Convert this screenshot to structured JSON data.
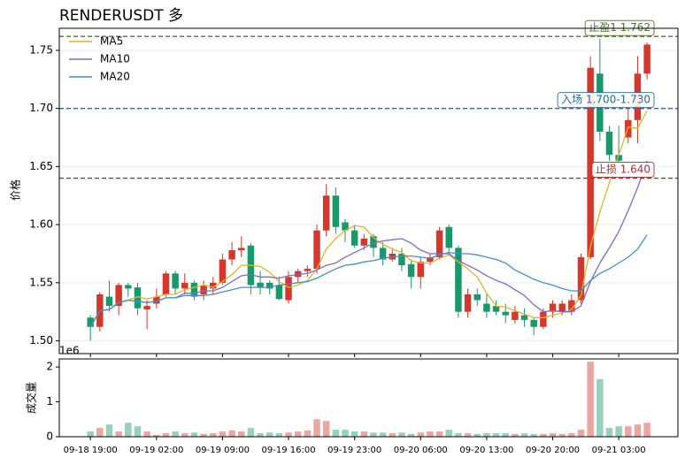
{
  "chart_data": {
    "type": "candlestick",
    "title": "RENDERUSDT  多",
    "ylabel": "价格",
    "volume_label": "成交量",
    "volume_offset": "1e6",
    "categories": [
      "09-18 19:00",
      null,
      null,
      null,
      null,
      null,
      null,
      "09-19 02:00",
      null,
      null,
      null,
      null,
      null,
      null,
      "09-19 09:00",
      null,
      null,
      null,
      null,
      null,
      null,
      "09-19 16:00",
      null,
      null,
      null,
      null,
      null,
      null,
      "09-19 23:00",
      null,
      null,
      null,
      null,
      null,
      null,
      "09-20 06:00",
      null,
      null,
      null,
      null,
      null,
      null,
      "09-20 13:00",
      null,
      null,
      null,
      null,
      null,
      null,
      "09-20 20:00",
      null,
      null,
      null,
      null,
      null,
      null,
      "09-21 03:00",
      null,
      null,
      null
    ],
    "open": [
      1.52,
      1.512,
      1.538,
      1.53,
      1.548,
      1.546,
      1.527,
      1.532,
      1.54,
      1.558,
      1.545,
      1.55,
      1.54,
      1.545,
      1.55,
      1.57,
      1.578,
      1.582,
      1.55,
      1.55,
      1.548,
      1.535,
      1.555,
      1.56,
      1.562,
      1.595,
      1.625,
      1.602,
      1.595,
      1.582,
      1.59,
      1.58,
      1.57,
      1.575,
      1.566,
      1.555,
      1.568,
      1.572,
      1.598,
      1.58,
      1.525,
      1.54,
      1.532,
      1.53,
      1.525,
      1.518,
      1.522,
      1.518,
      1.512,
      1.525,
      1.525,
      1.525,
      1.535,
      1.572,
      1.73,
      1.68,
      1.66,
      1.675,
      1.69,
      1.73
    ],
    "high": [
      1.522,
      1.542,
      1.552,
      1.55,
      1.55,
      1.55,
      1.535,
      1.545,
      1.56,
      1.56,
      1.558,
      1.552,
      1.552,
      1.555,
      1.575,
      1.585,
      1.59,
      1.584,
      1.56,
      1.552,
      1.555,
      1.56,
      1.562,
      1.565,
      1.6,
      1.635,
      1.632,
      1.605,
      1.6,
      1.592,
      1.592,
      1.585,
      1.58,
      1.58,
      1.57,
      1.572,
      1.575,
      1.598,
      1.6,
      1.582,
      1.545,
      1.545,
      1.54,
      1.535,
      1.532,
      1.53,
      1.528,
      1.52,
      1.528,
      1.535,
      1.535,
      1.54,
      1.575,
      1.745,
      1.76,
      1.685,
      1.685,
      1.7,
      1.745,
      1.757
    ],
    "low": [
      1.5,
      1.508,
      1.525,
      1.522,
      1.538,
      1.522,
      1.51,
      1.528,
      1.538,
      1.54,
      1.54,
      1.535,
      1.535,
      1.54,
      1.548,
      1.565,
      1.572,
      1.54,
      1.54,
      1.54,
      1.535,
      1.532,
      1.55,
      1.555,
      1.558,
      1.59,
      1.592,
      1.585,
      1.58,
      1.578,
      1.572,
      1.565,
      1.568,
      1.56,
      1.545,
      1.545,
      1.565,
      1.57,
      1.575,
      1.52,
      1.52,
      1.53,
      1.52,
      1.522,
      1.515,
      1.515,
      1.512,
      1.505,
      1.51,
      1.52,
      1.522,
      1.522,
      1.532,
      1.57,
      1.672,
      1.655,
      1.65,
      1.67,
      1.67,
      1.725
    ],
    "close": [
      1.512,
      1.54,
      1.53,
      1.548,
      1.545,
      1.528,
      1.53,
      1.538,
      1.558,
      1.545,
      1.55,
      1.538,
      1.548,
      1.55,
      1.57,
      1.578,
      1.58,
      1.548,
      1.546,
      1.545,
      1.536,
      1.555,
      1.56,
      1.562,
      1.595,
      1.625,
      1.598,
      1.595,
      1.582,
      1.588,
      1.58,
      1.57,
      1.575,
      1.565,
      1.555,
      1.568,
      1.572,
      1.595,
      1.58,
      1.525,
      1.54,
      1.535,
      1.525,
      1.525,
      1.522,
      1.525,
      1.518,
      1.512,
      1.525,
      1.532,
      1.532,
      1.535,
      1.572,
      1.735,
      1.68,
      1.66,
      1.655,
      1.69,
      1.73,
      1.755
    ],
    "volume": [
      0.15,
      0.25,
      0.35,
      0.15,
      0.4,
      0.3,
      0.15,
      0.05,
      0.1,
      0.15,
      0.1,
      0.12,
      0.08,
      0.1,
      0.15,
      0.18,
      0.15,
      0.25,
      0.1,
      0.12,
      0.1,
      0.12,
      0.15,
      0.18,
      0.5,
      0.45,
      0.2,
      0.2,
      0.15,
      0.15,
      0.12,
      0.12,
      0.1,
      0.12,
      0.08,
      0.12,
      0.15,
      0.15,
      0.2,
      0.1,
      0.1,
      0.08,
      0.1,
      0.1,
      0.1,
      0.08,
      0.1,
      0.08,
      0.08,
      0.1,
      0.08,
      0.1,
      0.2,
      2.15,
      1.65,
      0.25,
      0.3,
      0.3,
      0.35,
      0.4
    ],
    "up_color": "#d6372c",
    "down_color": "#18996a",
    "series": [
      {
        "name": "MA5",
        "color": "#e6b422",
        "values": [
          1.512,
          1.526,
          1.527,
          1.533,
          1.535,
          1.538,
          1.536,
          1.538,
          1.54,
          1.54,
          1.544,
          1.546,
          1.548,
          1.546,
          1.551,
          1.557,
          1.565,
          1.565,
          1.564,
          1.559,
          1.551,
          1.546,
          1.548,
          1.552,
          1.562,
          1.579,
          1.588,
          1.595,
          1.599,
          1.598,
          1.589,
          1.583,
          1.579,
          1.576,
          1.569,
          1.567,
          1.567,
          1.571,
          1.574,
          1.568,
          1.562,
          1.555,
          1.541,
          1.53,
          1.529,
          1.526,
          1.523,
          1.52,
          1.52,
          1.522,
          1.524,
          1.527,
          1.539,
          1.581,
          1.611,
          1.636,
          1.66,
          1.684,
          1.683,
          1.698
        ]
      },
      {
        "name": "MA10",
        "color": "#8467cc",
        "values": [
          1.512,
          1.526,
          1.527,
          1.533,
          1.535,
          1.534,
          1.533,
          1.534,
          1.537,
          1.537,
          1.541,
          1.541,
          1.543,
          1.543,
          1.546,
          1.551,
          1.556,
          1.557,
          1.555,
          1.555,
          1.554,
          1.556,
          1.557,
          1.558,
          1.561,
          1.565,
          1.567,
          1.572,
          1.576,
          1.58,
          1.584,
          1.586,
          1.587,
          1.588,
          1.584,
          1.578,
          1.575,
          1.575,
          1.575,
          1.569,
          1.565,
          1.561,
          1.556,
          1.552,
          1.549,
          1.544,
          1.539,
          1.531,
          1.525,
          1.526,
          1.525,
          1.525,
          1.53,
          1.551,
          1.567,
          1.58,
          1.594,
          1.612,
          1.632,
          1.655
        ]
      },
      {
        "name": "MA20",
        "color": "#3f8fd2",
        "values": [
          1.512,
          1.526,
          1.527,
          1.533,
          1.535,
          1.534,
          1.533,
          1.534,
          1.537,
          1.537,
          1.539,
          1.539,
          1.539,
          1.54,
          1.542,
          1.544,
          1.546,
          1.546,
          1.546,
          1.546,
          1.548,
          1.549,
          1.55,
          1.551,
          1.554,
          1.558,
          1.562,
          1.565,
          1.566,
          1.568,
          1.569,
          1.571,
          1.572,
          1.573,
          1.573,
          1.572,
          1.571,
          1.574,
          1.576,
          1.575,
          1.575,
          1.574,
          1.572,
          1.57,
          1.567,
          1.561,
          1.557,
          1.553,
          1.55,
          1.548,
          1.545,
          1.543,
          1.543,
          1.552,
          1.558,
          1.562,
          1.567,
          1.572,
          1.579,
          1.591
        ]
      }
    ],
    "levels": [
      {
        "label": "止盈1 1.762",
        "value": 1.762,
        "color": "#4a7d22"
      },
      {
        "label": "入场 1.700-1.730",
        "value": 1.7,
        "color": "#2a6aa0"
      },
      {
        "label": "止损 1.640",
        "value": 1.64,
        "color": "#a83232"
      }
    ],
    "ylim": [
      1.489,
      1.769
    ],
    "yticks": [
      {
        "value": 1.5,
        "label": "1.50"
      },
      1.55,
      {
        "value": 1.6,
        "label": "1.60"
      },
      1.65,
      {
        "value": 1.7,
        "label": "1.70"
      },
      1.75
    ],
    "y2lim": [
      0,
      2.23
    ],
    "y2ticks": [
      0,
      1,
      2
    ],
    "grid": true,
    "legend": "upper left"
  }
}
